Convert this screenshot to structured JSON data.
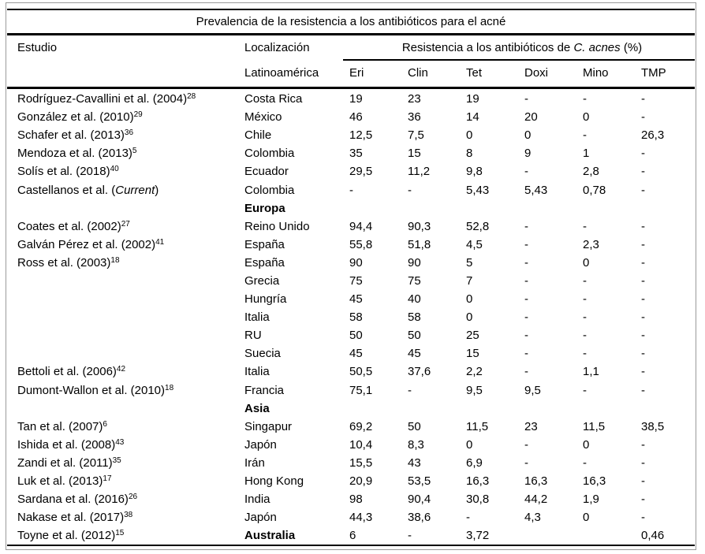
{
  "title": "Prevalencia de la resistencia a los antibióticos para el acné",
  "columns": {
    "study": "Estudio",
    "location": "Localización",
    "resistance_prefix": "Resistencia a los antibióticos de ",
    "resistance_species": "C. acnes",
    "resistance_suffix": " (%)",
    "region_first": "Latinoamérica",
    "antibiotics": [
      "Eri",
      "Clin",
      "Tet",
      "Doxi",
      "Mino",
      "TMP"
    ]
  },
  "rows": [
    {
      "study": "Rodríguez-Cavallini et al. (2004)",
      "ref": "28",
      "location": "Costa Rica",
      "location_bold": false,
      "values": [
        "19",
        "23",
        "19",
        "-",
        "-",
        "-"
      ]
    },
    {
      "study": "González et al. (2010)",
      "ref": "29",
      "location": "México",
      "location_bold": false,
      "values": [
        "46",
        "36",
        "14",
        "20",
        "0",
        "-"
      ]
    },
    {
      "study": "Schafer et al. (2013)",
      "ref": "36",
      "location": "Chile",
      "location_bold": false,
      "values": [
        "12,5",
        "7,5",
        "0",
        "0",
        "-",
        "26,3"
      ]
    },
    {
      "study": "Mendoza et al. (2013)",
      "ref": "5",
      "location": "Colombia",
      "location_bold": false,
      "values": [
        "35",
        "15",
        "8",
        "9",
        "1",
        "-"
      ]
    },
    {
      "study": "Solís et al. (2018)",
      "ref": "40",
      "location": "Ecuador",
      "location_bold": false,
      "values": [
        "29,5",
        "11,2",
        "9,8",
        "-",
        "2,8",
        "-"
      ]
    },
    {
      "study": "Castellanos et al. (",
      "study_italic": "Current",
      "study_suffix": ")",
      "ref": "",
      "location": "Colombia",
      "location_bold": false,
      "values": [
        "-",
        "-",
        "5,43",
        "5,43",
        "0,78",
        "-"
      ]
    },
    {
      "study": "",
      "ref": "",
      "location": "Europa",
      "location_bold": true,
      "values": [
        "",
        "",
        "",
        "",
        "",
        ""
      ]
    },
    {
      "study": "Coates et al. (2002)",
      "ref": "27",
      "location": "Reino Unido",
      "location_bold": false,
      "values": [
        "94,4",
        "90,3",
        "52,8",
        "-",
        "-",
        "-"
      ]
    },
    {
      "study": "Galván Pérez et al. (2002)",
      "ref": "41",
      "location": "España",
      "location_bold": false,
      "values": [
        "55,8",
        "51,8",
        "4,5",
        "-",
        "2,3",
        "-"
      ]
    },
    {
      "study": "Ross et al. (2003)",
      "ref": "18",
      "location": "España",
      "location_bold": false,
      "values": [
        "90",
        "90",
        "5",
        "-",
        "0",
        "-"
      ]
    },
    {
      "study": "",
      "ref": "",
      "location": "Grecia",
      "location_bold": false,
      "values": [
        "75",
        "75",
        "7",
        "-",
        "-",
        "-"
      ]
    },
    {
      "study": "",
      "ref": "",
      "location": "Hungría",
      "location_bold": false,
      "values": [
        "45",
        "40",
        "0",
        "-",
        "-",
        "-"
      ]
    },
    {
      "study": "",
      "ref": "",
      "location": "Italia",
      "location_bold": false,
      "values": [
        "58",
        "58",
        "0",
        "-",
        "-",
        "-"
      ]
    },
    {
      "study": "",
      "ref": "",
      "location": "RU",
      "location_bold": false,
      "values": [
        "50",
        "50",
        "25",
        "-",
        "-",
        "-"
      ]
    },
    {
      "study": "",
      "ref": "",
      "location": "Suecia",
      "location_bold": false,
      "values": [
        "45",
        "45",
        "15",
        "-",
        "-",
        "-"
      ]
    },
    {
      "study": "Bettoli et al. (2006)",
      "ref": "42",
      "location": "Italia",
      "location_bold": false,
      "values": [
        "50,5",
        "37,6",
        "2,2",
        "-",
        "1,1",
        "-"
      ]
    },
    {
      "study": "Dumont-Wallon et al. (2010)",
      "ref": "18",
      "location": "Francia",
      "location_bold": false,
      "values": [
        "75,1",
        "-",
        "9,5",
        "9,5",
        "-",
        "-"
      ]
    },
    {
      "study": "",
      "ref": "",
      "location": "Asia",
      "location_bold": true,
      "values": [
        "",
        "",
        "",
        "",
        "",
        ""
      ]
    },
    {
      "study": "Tan et al. (2007)",
      "ref": "6",
      "location": "Singapur",
      "location_bold": false,
      "values": [
        "69,2",
        "50",
        "11,5",
        "23",
        "11,5",
        "38,5"
      ]
    },
    {
      "study": "Ishida et al. (2008)",
      "ref": "43",
      "location": "Japón",
      "location_bold": false,
      "values": [
        "10,4",
        "8,3",
        "0",
        "-",
        "0",
        "-"
      ]
    },
    {
      "study": "Zandi et al. (2011)",
      "ref": "35",
      "location": "Irán",
      "location_bold": false,
      "values": [
        "15,5",
        "43",
        "6,9",
        "-",
        "-",
        "-"
      ]
    },
    {
      "study": "Luk et al. (2013)",
      "ref": "17",
      "location": "Hong Kong",
      "location_bold": false,
      "values": [
        "20,9",
        "53,5",
        "16,3",
        "16,3",
        "16,3",
        "-"
      ]
    },
    {
      "study": "Sardana et al. (2016)",
      "ref": "26",
      "location": "India",
      "location_bold": false,
      "values": [
        "98",
        "90,4",
        "30,8",
        "44,2",
        "1,9",
        "-"
      ]
    },
    {
      "study": "Nakase et al. (2017)",
      "ref": "38",
      "location": "Japón",
      "location_bold": false,
      "values": [
        "44,3",
        "38,6",
        "-",
        "4,3",
        "0",
        "-"
      ]
    },
    {
      "study": "Toyne et al. (2012)",
      "ref": "15",
      "location": "Australia",
      "location_bold": true,
      "values": [
        "6",
        "-",
        "3,72",
        "",
        "",
        "0,46"
      ]
    }
  ],
  "colors": {
    "text": "#000000",
    "rule": "#000000",
    "frame_border": "#9a9a9a",
    "background": "#ffffff"
  }
}
